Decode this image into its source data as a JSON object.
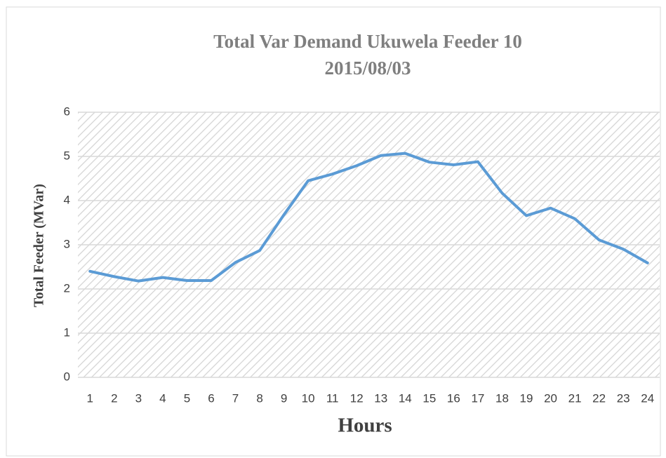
{
  "chart_data": {
    "type": "line",
    "title": "Total Var Demand Ukuwela Feeder 10",
    "subtitle": "2015/08/03",
    "x_label": "Hours",
    "y_label": "Total Feeder (MVar)",
    "categories": [
      "1",
      "2",
      "3",
      "4",
      "5",
      "6",
      "7",
      "8",
      "9",
      "10",
      "11",
      "12",
      "13",
      "14",
      "15",
      "16",
      "17",
      "18",
      "19",
      "20",
      "21",
      "22",
      "23",
      "24"
    ],
    "series": [
      {
        "name": "Total Var Demand",
        "color": "#5b9bd5",
        "values": [
          2.4,
          2.28,
          2.18,
          2.26,
          2.19,
          2.19,
          2.6,
          2.87,
          3.68,
          4.45,
          4.6,
          4.79,
          5.02,
          5.07,
          4.87,
          4.81,
          4.88,
          4.17,
          3.66,
          3.83,
          3.59,
          3.11,
          2.9,
          2.59
        ]
      }
    ],
    "ylim": [
      0,
      6
    ],
    "yticks": [
      0,
      1,
      2,
      3,
      4,
      5,
      6
    ],
    "grid": true
  }
}
